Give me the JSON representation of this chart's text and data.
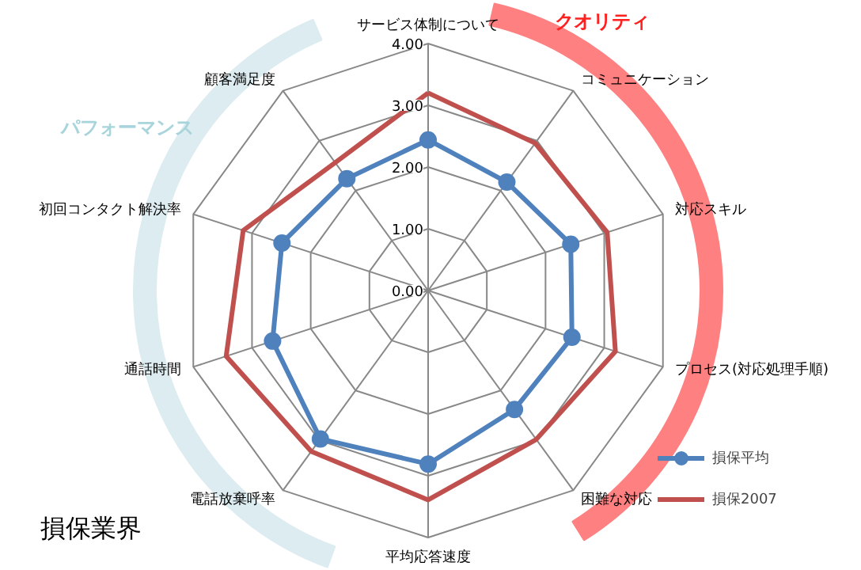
{
  "chart_data": {
    "type": "radar",
    "title": "損保業界",
    "categories": [
      "サービス体制について",
      "コミュニケーション",
      "対応スキル",
      "プロセス(対応処理手順)",
      "困難な対応",
      "平均応答速度",
      "電話放棄呼率",
      "通話時間",
      "初回コンタクト解決率",
      "顧客満足度"
    ],
    "series": [
      {
        "name": "損保平均",
        "color": "#4f81bd",
        "marker": "circle",
        "values": [
          2.44,
          2.17,
          2.43,
          2.45,
          2.38,
          2.81,
          2.97,
          2.65,
          2.49,
          2.24
        ]
      },
      {
        "name": "損保2007",
        "color": "#c0504d",
        "marker": "none",
        "values": [
          3.2,
          2.95,
          3.05,
          3.19,
          2.98,
          3.39,
          3.22,
          3.44,
          3.15,
          2.56
        ]
      }
    ],
    "ylim": [
      0,
      4
    ],
    "yticks": [
      {
        "value": 0,
        "label": "0.00"
      },
      {
        "value": 1,
        "label": "1.00"
      },
      {
        "value": 2,
        "label": "2.00"
      },
      {
        "value": 3,
        "label": "3.00"
      },
      {
        "value": 4,
        "label": "4.00"
      }
    ],
    "grid": true,
    "legend": "bottom right",
    "annotations": [
      "クオリティ",
      "パフォーマンス"
    ]
  }
}
